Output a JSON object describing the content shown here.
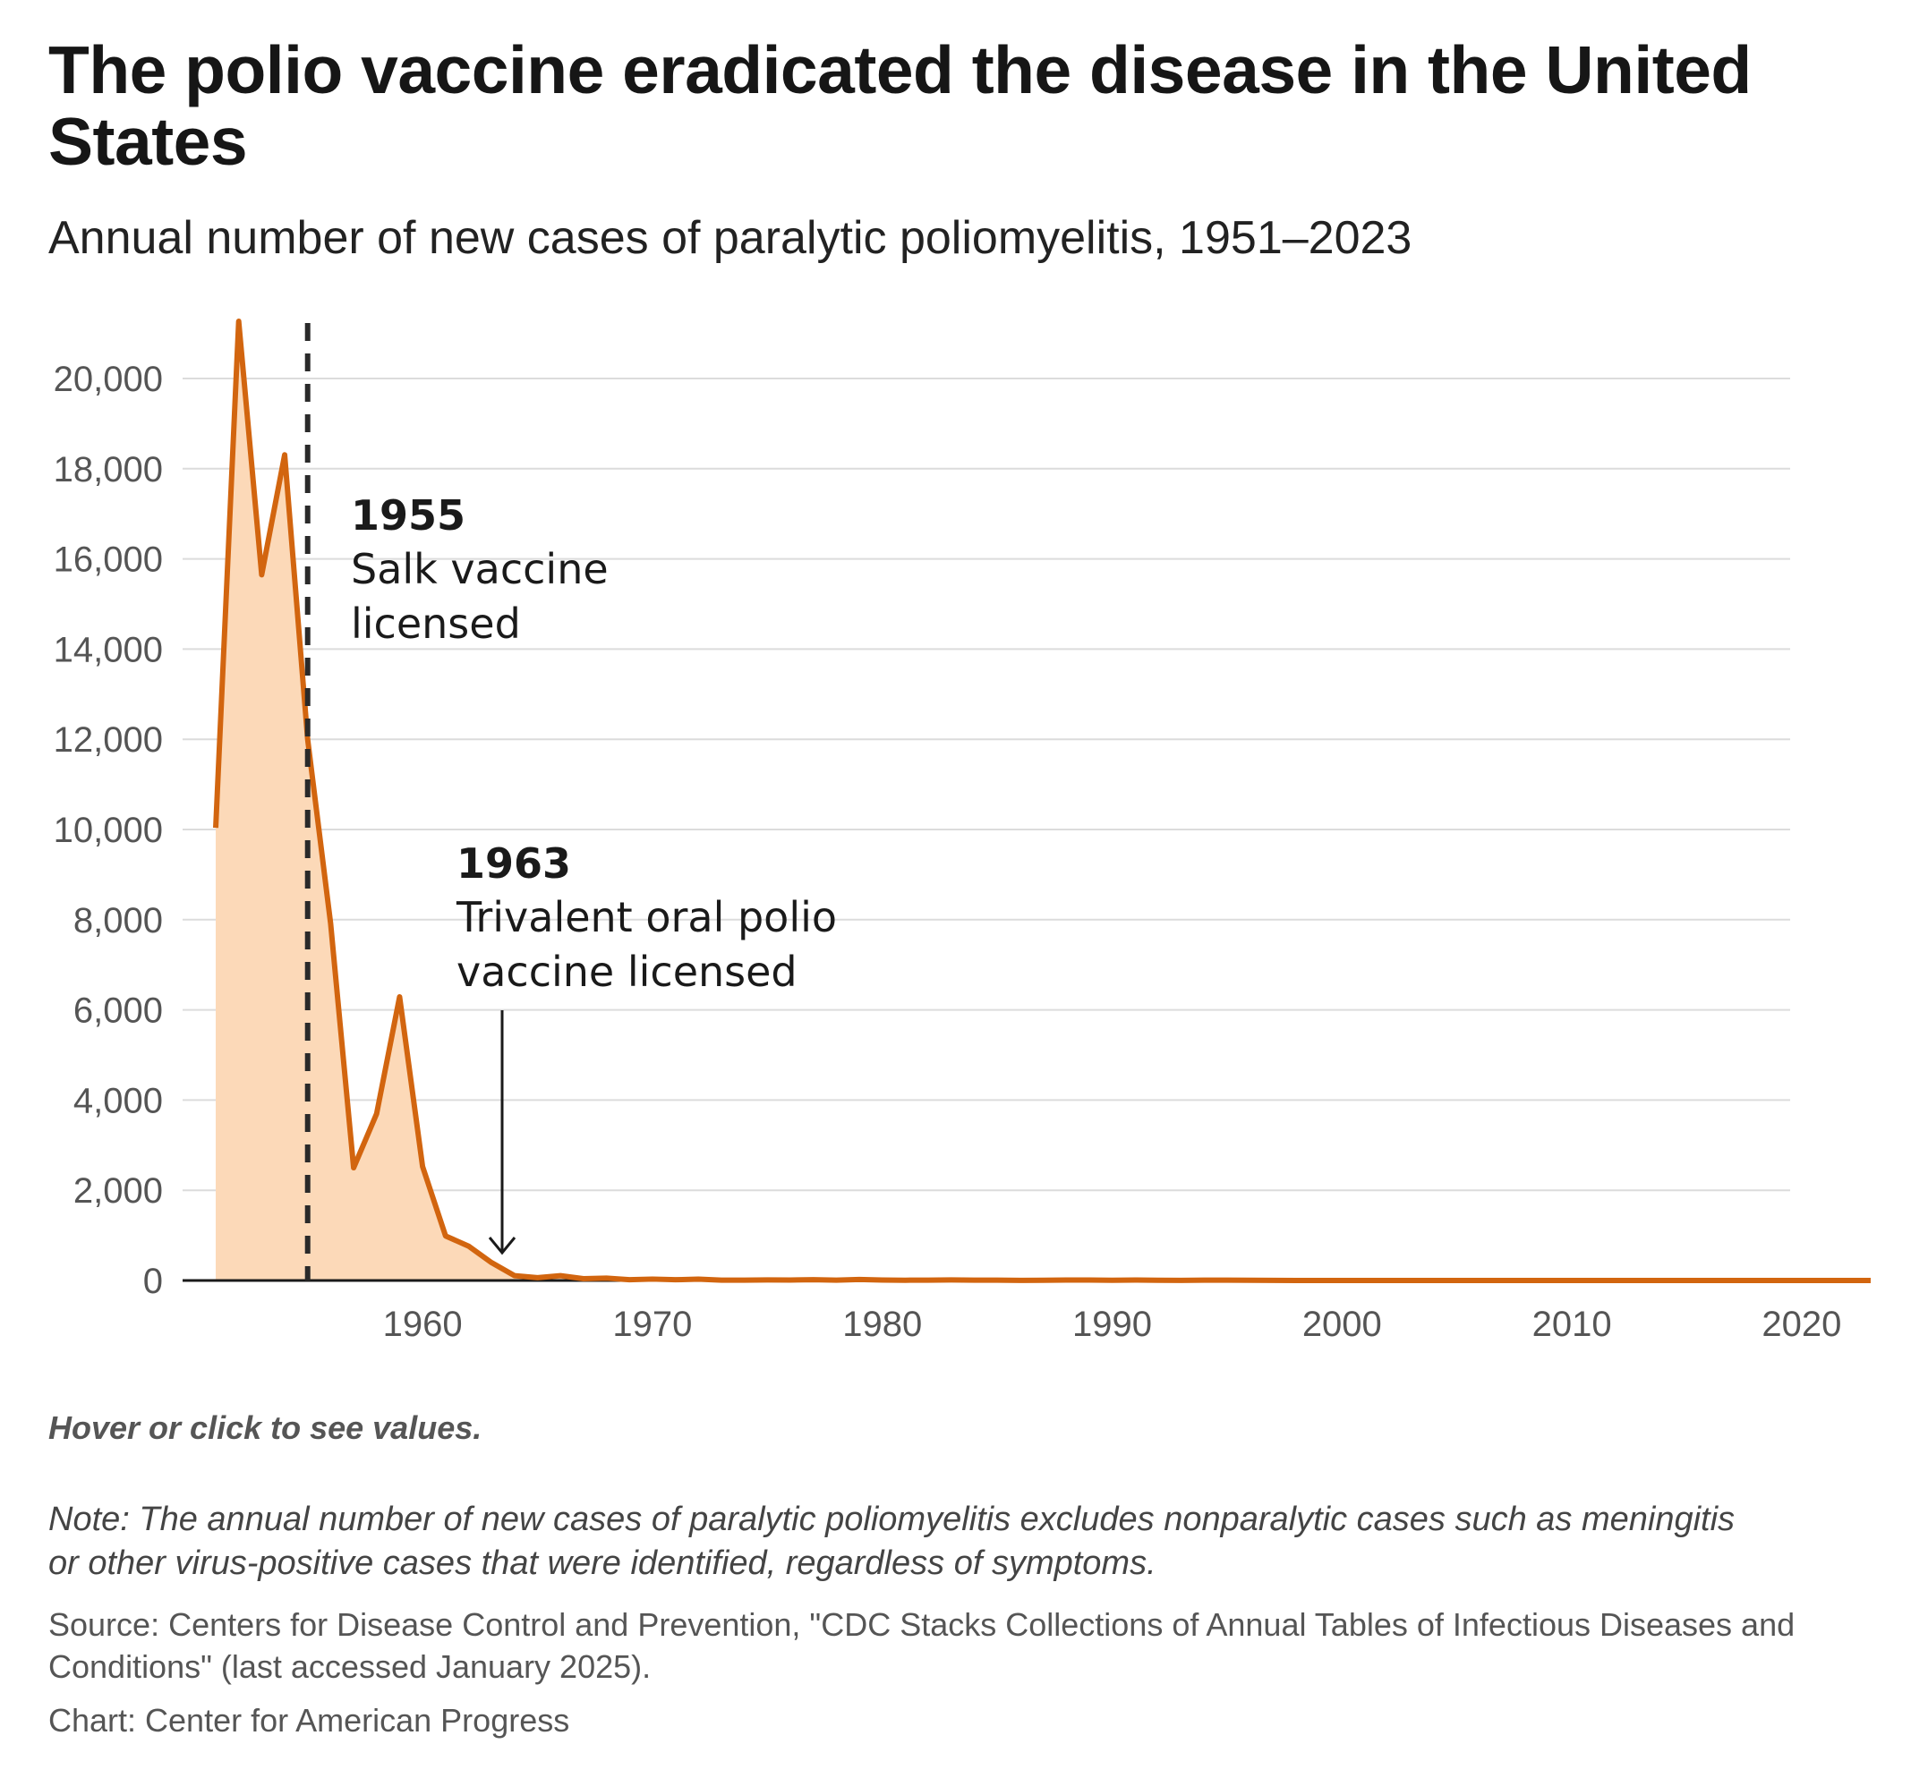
{
  "header": {
    "title": "The polio vaccine eradicated the disease in the United States",
    "subtitle": "Annual number of new cases of paralytic poliomyelitis, 1951–2023"
  },
  "footer": {
    "hover_hint": "Hover or click to see values.",
    "note": "Note: The annual number of new cases of paralytic poliomyelitis excludes nonparalytic cases such as meningitis or other virus-positive cases that were identified, regardless of symptoms.",
    "source": "Source: Centers for Disease Control and Prevention, \"CDC Stacks Collections of Annual Tables of Infectious Diseases and Conditions\" (last accessed January 2025).",
    "credit": "Chart: Center for American Progress"
  },
  "colors": {
    "line": "#d2650f",
    "area": "#fcd9b8",
    "grid": "#dcdcdc",
    "axis": "#1a1a1a",
    "annotation": "#1a1a1a",
    "tick_label": "#555555"
  },
  "chart_data": {
    "type": "area",
    "title": "Annual number of new cases of paralytic poliomyelitis, 1951–2023",
    "xlabel": "",
    "ylabel": "",
    "xlim": [
      1947,
      2023
    ],
    "ylim": [
      0,
      21300
    ],
    "grid": true,
    "y_ticks": [
      0,
      2000,
      4000,
      6000,
      8000,
      10000,
      12000,
      14000,
      16000,
      18000,
      20000
    ],
    "y_tick_labels": [
      "0",
      "2,000",
      "4,000",
      "6,000",
      "8,000",
      "10,000",
      "12,000",
      "14,000",
      "16,000",
      "18,000",
      "20,000"
    ],
    "x_ticks": [
      1960,
      1970,
      1980,
      1990,
      2000,
      2010,
      2020
    ],
    "x_tick_labels": [
      "1960",
      "1970",
      "1980",
      "1990",
      "2000",
      "2010",
      "2020"
    ],
    "series": [
      {
        "name": "Paralytic poliomyelitis cases",
        "x": [
          1951,
          1952,
          1953,
          1954,
          1955,
          1956,
          1957,
          1958,
          1959,
          1960,
          1961,
          1962,
          1963,
          1964,
          1965,
          1966,
          1967,
          1968,
          1969,
          1970,
          1971,
          1972,
          1973,
          1974,
          1975,
          1976,
          1977,
          1978,
          1979,
          1980,
          1981,
          1982,
          1983,
          1984,
          1985,
          1986,
          1987,
          1988,
          1989,
          1990,
          1991,
          1992,
          1993,
          1994,
          1995,
          1996,
          1997,
          1998,
          1999,
          2000,
          2001,
          2002,
          2003,
          2004,
          2005,
          2006,
          2007,
          2008,
          2009,
          2010,
          2011,
          2012,
          2013,
          2014,
          2015,
          2016,
          2017,
          2018,
          2019,
          2020,
          2021,
          2022,
          2023
        ],
        "values": [
          10037,
          21269,
          15648,
          18308,
          12000,
          7911,
          2499,
          3697,
          6289,
          2525,
          988,
          762,
          396,
          106,
          61,
          106,
          40,
          53,
          18,
          31,
          17,
          29,
          7,
          7,
          13,
          10,
          18,
          8,
          22,
          9,
          6,
          8,
          13,
          8,
          7,
          2,
          5,
          9,
          11,
          6,
          10,
          6,
          3,
          8,
          7,
          5,
          3,
          1,
          1,
          0,
          0,
          0,
          0,
          0,
          1,
          0,
          0,
          0,
          0,
          0,
          0,
          0,
          0,
          0,
          0,
          0,
          0,
          0,
          0,
          0,
          0,
          1,
          0
        ]
      }
    ],
    "annotations": [
      {
        "year": 1955,
        "type": "dashed-vline",
        "heading": "1955",
        "lines": [
          "Salk vaccine",
          "licensed"
        ]
      },
      {
        "year": 1963,
        "type": "arrow",
        "heading": "1963",
        "lines": [
          "Trivalent oral polio",
          "vaccine licensed"
        ]
      }
    ]
  }
}
